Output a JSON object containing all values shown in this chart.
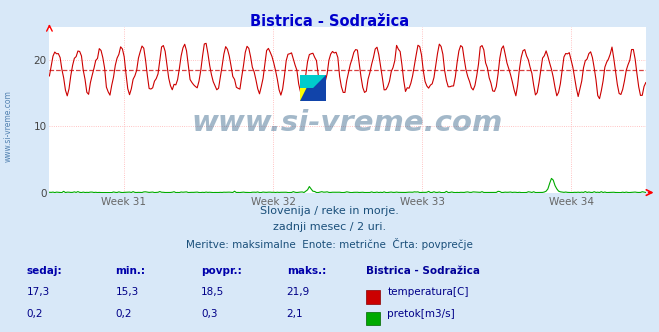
{
  "title": "Bistrica - Sodražica",
  "title_color": "#0000cc",
  "bg_color": "#d8e8f8",
  "plot_bg_color": "#ffffff",
  "grid_color": "#ffb0b0",
  "grid_style": ":",
  "x_labels": [
    "Week 31",
    "Week 32",
    "Week 33",
    "Week 34"
  ],
  "x_label_color": "#666666",
  "y_ticks": [
    0,
    10,
    20
  ],
  "y_tick_color": "#444444",
  "ylim": [
    0,
    25
  ],
  "xlim_days": 28,
  "temp_color": "#cc0000",
  "temp_avg": 18.5,
  "temp_min": 15.3,
  "temp_max": 21.9,
  "temp_current": 17.3,
  "flow_color": "#00aa00",
  "flow_avg": 0.3,
  "flow_min": 0.2,
  "flow_max": 2.1,
  "flow_current": 0.2,
  "avg_line_color": "#cc0000",
  "watermark_text": "www.si-vreme.com",
  "watermark_color": "#1a4f7a",
  "side_watermark_color": "#4477aa",
  "subtitle1": "Slovenija / reke in morje.",
  "subtitle2": "zadnji mesec / 2 uri.",
  "subtitle3": "Meritve: maksimalne  Enote: metrične  Črta: povprečje",
  "subtitle_color": "#1a4f7a",
  "legend_header": "Bistrica - Sodražica",
  "legend_header_color": "#000099",
  "label_sedaj": "sedaj:",
  "label_min": "min.:",
  "label_povpr": "povpr.:",
  "label_maks": "maks.:",
  "label_color": "#0000aa",
  "value_color": "#000088",
  "temp_label": "temperatura[C]",
  "flow_label": "pretok[m3/s]",
  "n_points": 336
}
